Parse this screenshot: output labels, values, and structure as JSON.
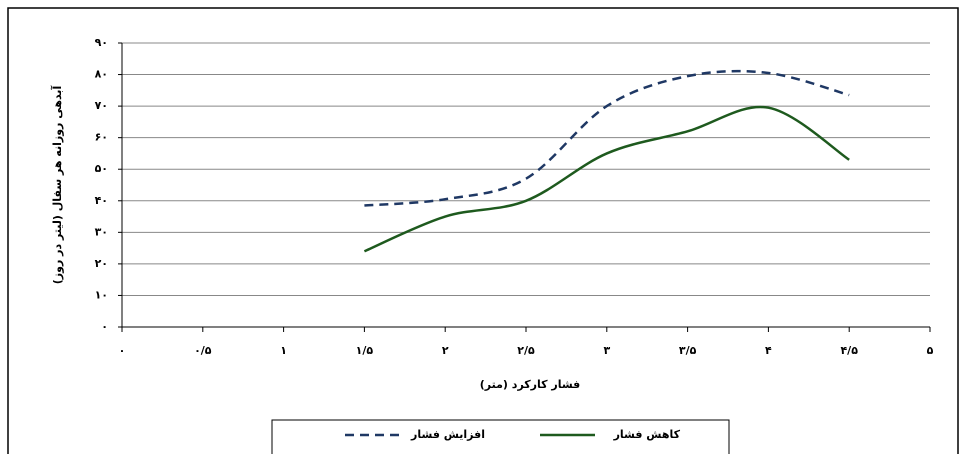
{
  "chart_data": {
    "type": "line",
    "xlabel": "فشار کارکرد (متر)",
    "ylabel": "آبدهی روزانه هر سفال (لیتر در روز)",
    "x": [
      1.5,
      2,
      2.5,
      3,
      3.5,
      4,
      4.5
    ],
    "series": [
      {
        "name": "افزایش فشار",
        "color": "#1f3864",
        "line_style": "dashed",
        "values": [
          38.5,
          40.5,
          47,
          70,
          79.5,
          80.5,
          73.5
        ]
      },
      {
        "name": "کاهش فشار",
        "color": "#1e5a1e",
        "line_style": "solid",
        "values": [
          24,
          35,
          40,
          55,
          62,
          69.5,
          53
        ]
      }
    ],
    "xlim": [
      0,
      5
    ],
    "xticks": [
      {
        "value": 0,
        "label": "۰"
      },
      {
        "value": 0.5,
        "label": "۰/۵"
      },
      {
        "value": 1,
        "label": "۱"
      },
      {
        "value": 1.5,
        "label": "۱/۵"
      },
      {
        "value": 2,
        "label": "۲"
      },
      {
        "value": 2.5,
        "label": "۲/۵"
      },
      {
        "value": 3,
        "label": "۳"
      },
      {
        "value": 3.5,
        "label": "۳/۵"
      },
      {
        "value": 4,
        "label": "۴"
      },
      {
        "value": 4.5,
        "label": "۴/۵"
      },
      {
        "value": 5,
        "label": "۵"
      }
    ],
    "ylim": [
      0,
      90
    ],
    "yticks": [
      {
        "value": 0,
        "label": "۰"
      },
      {
        "value": 10,
        "label": "۱۰"
      },
      {
        "value": 20,
        "label": "۲۰"
      },
      {
        "value": 30,
        "label": "۳۰"
      },
      {
        "value": 40,
        "label": "۴۰"
      },
      {
        "value": 50,
        "label": "۵۰"
      },
      {
        "value": 60,
        "label": "۶۰"
      },
      {
        "value": 70,
        "label": "۷۰"
      },
      {
        "value": 80,
        "label": "۸۰"
      },
      {
        "value": 90,
        "label": "۹۰"
      }
    ],
    "grid": true,
    "legend": "bottom"
  }
}
